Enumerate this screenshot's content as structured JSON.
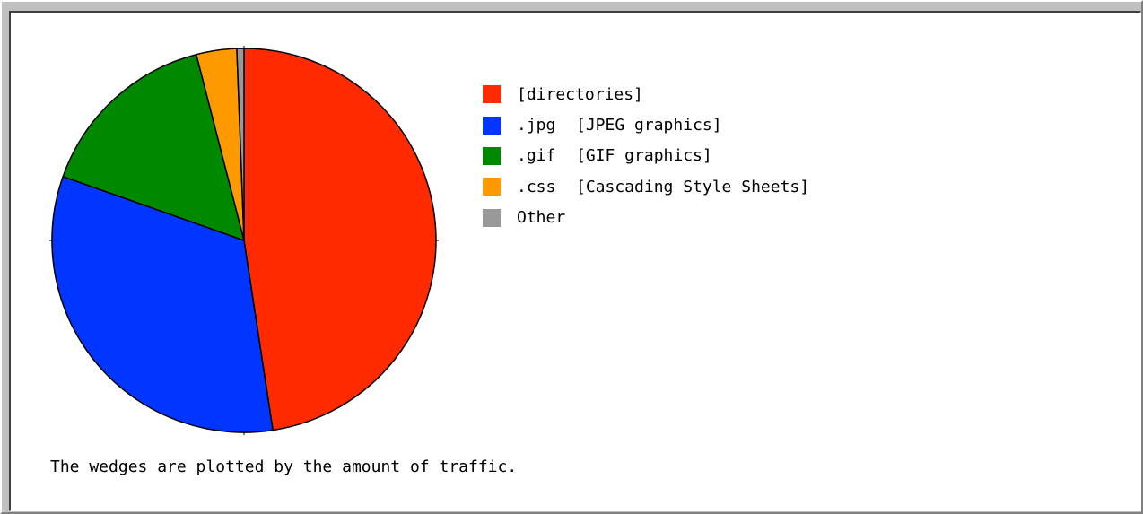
{
  "chart_data": {
    "type": "pie",
    "title": "",
    "slices": [
      {
        "ext": "",
        "desc": "[directories]",
        "value": 47.6,
        "color": "#ff2a00"
      },
      {
        "ext": ".jpg",
        "desc": "[JPEG graphics]",
        "value": 32.8,
        "color": "#0036ff"
      },
      {
        "ext": ".gif",
        "desc": "[GIF graphics]",
        "value": 15.6,
        "color": "#008800"
      },
      {
        "ext": ".css",
        "desc": "[Cascading Style Sheets]",
        "value": 3.4,
        "color": "#ff9900"
      },
      {
        "ext": "",
        "desc": "Other",
        "value": 0.6,
        "color": "#999999"
      }
    ],
    "legend_position": "right",
    "caption": "The wedges are plotted by the amount of traffic."
  }
}
